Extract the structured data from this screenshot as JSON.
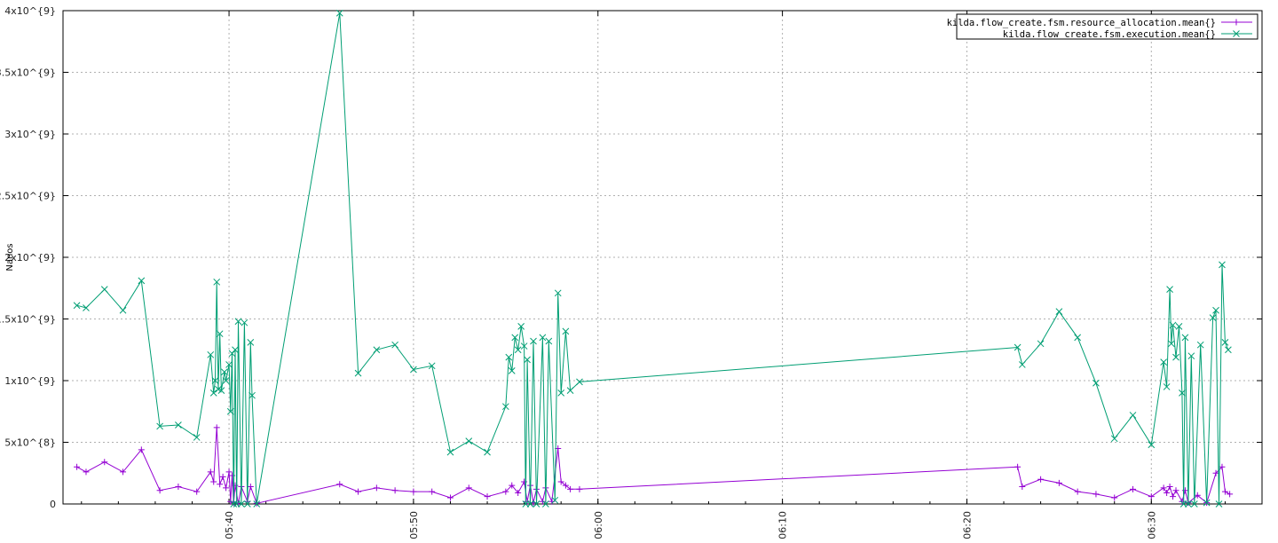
{
  "chart_data": {
    "type": "line",
    "title": "",
    "xlabel": "",
    "ylabel": "Nanos",
    "x_range": [
      "05:31",
      "06:36"
    ],
    "ylim": [
      0,
      4000000000
    ],
    "grid": true,
    "legend_position": "top-right",
    "x_ticks": [
      "05:40",
      "05:50",
      "06:00",
      "06:10",
      "06:20",
      "06:30"
    ],
    "y_ticks": [
      {
        "value": 0,
        "label": "0"
      },
      {
        "value": 500000000,
        "label": "5x10^{8}"
      },
      {
        "value": 1000000000,
        "label": "1x10^{9}"
      },
      {
        "value": 1500000000,
        "label": "1.5x10^{9}"
      },
      {
        "value": 2000000000,
        "label": "2x10^{9}"
      },
      {
        "value": 2500000000,
        "label": "2.5x10^{9}"
      },
      {
        "value": 3000000000,
        "label": "3x10^{9}"
      },
      {
        "value": 3500000000,
        "label": "3.5x10^{9}"
      },
      {
        "value": 4000000000,
        "label": "4x10^{9}"
      }
    ],
    "series": [
      {
        "name": "kilda.flow_create.fsm.resource_allocation.mean{}",
        "color": "#9400d3",
        "marker": "plus",
        "points": [
          [
            "05:31:45",
            300000000
          ],
          [
            "05:32:15",
            260000000
          ],
          [
            "05:33:15",
            340000000
          ],
          [
            "05:34:15",
            260000000
          ],
          [
            "05:35:15",
            440000000
          ],
          [
            "05:36:15",
            110000000
          ],
          [
            "05:37:15",
            140000000
          ],
          [
            "05:38:15",
            100000000
          ],
          [
            "05:39:00",
            260000000
          ],
          [
            "05:39:10",
            180000000
          ],
          [
            "05:39:20",
            620000000
          ],
          [
            "05:39:30",
            160000000
          ],
          [
            "05:39:40",
            220000000
          ],
          [
            "05:39:50",
            130000000
          ],
          [
            "05:40:00",
            260000000
          ],
          [
            "05:40:05",
            20000000
          ],
          [
            "05:40:10",
            230000000
          ],
          [
            "05:40:15",
            10000000
          ],
          [
            "05:40:20",
            150000000
          ],
          [
            "05:40:30",
            5000000
          ],
          [
            "05:40:40",
            140000000
          ],
          [
            "05:41:00",
            20000000
          ],
          [
            "05:41:10",
            140000000
          ],
          [
            "05:41:30",
            5000000
          ],
          [
            "05:46:00",
            160000000
          ],
          [
            "05:47:00",
            100000000
          ],
          [
            "05:48:00",
            130000000
          ],
          [
            "05:49:00",
            110000000
          ],
          [
            "05:50:00",
            100000000
          ],
          [
            "05:51:00",
            100000000
          ],
          [
            "05:52:00",
            50000000
          ],
          [
            "05:53:00",
            130000000
          ],
          [
            "05:54:00",
            60000000
          ],
          [
            "05:55:00",
            100000000
          ],
          [
            "05:55:20",
            150000000
          ],
          [
            "05:55:40",
            90000000
          ],
          [
            "05:56:00",
            180000000
          ],
          [
            "05:56:10",
            20000000
          ],
          [
            "05:56:20",
            150000000
          ],
          [
            "05:56:30",
            10000000
          ],
          [
            "05:56:40",
            120000000
          ],
          [
            "05:57:00",
            20000000
          ],
          [
            "05:57:10",
            130000000
          ],
          [
            "05:57:30",
            20000000
          ],
          [
            "05:57:50",
            450000000
          ],
          [
            "05:58:00",
            180000000
          ],
          [
            "05:58:15",
            150000000
          ],
          [
            "05:58:30",
            120000000
          ],
          [
            "05:59:00",
            120000000
          ],
          [
            "06:22:45",
            300000000
          ],
          [
            "06:23:00",
            140000000
          ],
          [
            "06:24:00",
            200000000
          ],
          [
            "06:25:00",
            170000000
          ],
          [
            "06:26:00",
            100000000
          ],
          [
            "06:27:00",
            80000000
          ],
          [
            "06:28:00",
            50000000
          ],
          [
            "06:29:00",
            120000000
          ],
          [
            "06:30:00",
            60000000
          ],
          [
            "06:30:40",
            130000000
          ],
          [
            "06:30:50",
            90000000
          ],
          [
            "06:31:00",
            140000000
          ],
          [
            "06:31:10",
            60000000
          ],
          [
            "06:31:20",
            110000000
          ],
          [
            "06:31:40",
            20000000
          ],
          [
            "06:31:50",
            110000000
          ],
          [
            "06:32:00",
            10000000
          ],
          [
            "06:32:30",
            70000000
          ],
          [
            "06:33:00",
            10000000
          ],
          [
            "06:33:30",
            250000000
          ],
          [
            "06:33:50",
            300000000
          ],
          [
            "06:34:00",
            100000000
          ],
          [
            "06:34:15",
            80000000
          ]
        ]
      },
      {
        "name": "kilda.flow_create.fsm.execution.mean{}",
        "color": "#009e73",
        "marker": "cross",
        "points": [
          [
            "05:31:45",
            1610000000
          ],
          [
            "05:32:15",
            1590000000
          ],
          [
            "05:33:15",
            1740000000
          ],
          [
            "05:34:15",
            1570000000
          ],
          [
            "05:35:15",
            1810000000
          ],
          [
            "05:36:15",
            630000000
          ],
          [
            "05:37:15",
            640000000
          ],
          [
            "05:38:15",
            540000000
          ],
          [
            "05:39:00",
            1210000000
          ],
          [
            "05:39:10",
            900000000
          ],
          [
            "05:39:15",
            1000000000
          ],
          [
            "05:39:20",
            1800000000
          ],
          [
            "05:39:25",
            930000000
          ],
          [
            "05:39:30",
            1380000000
          ],
          [
            "05:39:35",
            920000000
          ],
          [
            "05:39:45",
            1070000000
          ],
          [
            "05:39:50",
            1000000000
          ],
          [
            "05:40:00",
            1130000000
          ],
          [
            "05:40:05",
            750000000
          ],
          [
            "05:40:10",
            1220000000
          ],
          [
            "05:40:15",
            0
          ],
          [
            "05:40:20",
            1250000000
          ],
          [
            "05:40:25",
            0
          ],
          [
            "05:40:30",
            1480000000
          ],
          [
            "05:40:40",
            0
          ],
          [
            "05:40:50",
            1470000000
          ],
          [
            "05:41:00",
            0
          ],
          [
            "05:41:10",
            1310000000
          ],
          [
            "05:41:15",
            880000000
          ],
          [
            "05:41:30",
            0
          ],
          [
            "05:46:00",
            3980000000
          ],
          [
            "05:47:00",
            1060000000
          ],
          [
            "05:48:00",
            1250000000
          ],
          [
            "05:49:00",
            1290000000
          ],
          [
            "05:50:00",
            1090000000
          ],
          [
            "05:51:00",
            1120000000
          ],
          [
            "05:52:00",
            420000000
          ],
          [
            "05:53:00",
            510000000
          ],
          [
            "05:54:00",
            420000000
          ],
          [
            "05:55:00",
            790000000
          ],
          [
            "05:55:10",
            1190000000
          ],
          [
            "05:55:20",
            1080000000
          ],
          [
            "05:55:30",
            1350000000
          ],
          [
            "05:55:40",
            1250000000
          ],
          [
            "05:55:50",
            1440000000
          ],
          [
            "05:56:00",
            1280000000
          ],
          [
            "05:56:05",
            0
          ],
          [
            "05:56:10",
            1170000000
          ],
          [
            "05:56:20",
            0
          ],
          [
            "05:56:30",
            1320000000
          ],
          [
            "05:56:40",
            0
          ],
          [
            "05:57:00",
            1350000000
          ],
          [
            "05:57:10",
            0
          ],
          [
            "05:57:20",
            1320000000
          ],
          [
            "05:57:40",
            30000000
          ],
          [
            "05:57:50",
            1710000000
          ],
          [
            "05:58:00",
            900000000
          ],
          [
            "05:58:15",
            1400000000
          ],
          [
            "05:58:30",
            920000000
          ],
          [
            "05:59:00",
            990000000
          ],
          [
            "06:22:45",
            1270000000
          ],
          [
            "06:23:00",
            1130000000
          ],
          [
            "06:24:00",
            1300000000
          ],
          [
            "06:25:00",
            1560000000
          ],
          [
            "06:26:00",
            1350000000
          ],
          [
            "06:27:00",
            980000000
          ],
          [
            "06:28:00",
            530000000
          ],
          [
            "06:29:00",
            720000000
          ],
          [
            "06:30:00",
            480000000
          ],
          [
            "06:30:40",
            1150000000
          ],
          [
            "06:30:50",
            950000000
          ],
          [
            "06:31:00",
            1740000000
          ],
          [
            "06:31:05",
            1300000000
          ],
          [
            "06:31:10",
            1450000000
          ],
          [
            "06:31:20",
            1190000000
          ],
          [
            "06:31:30",
            1440000000
          ],
          [
            "06:31:40",
            900000000
          ],
          [
            "06:31:45",
            0
          ],
          [
            "06:31:50",
            1350000000
          ],
          [
            "06:32:00",
            0
          ],
          [
            "06:32:10",
            1200000000
          ],
          [
            "06:32:20",
            0
          ],
          [
            "06:32:40",
            1290000000
          ],
          [
            "06:33:00",
            10000000
          ],
          [
            "06:33:20",
            1510000000
          ],
          [
            "06:33:30",
            1570000000
          ],
          [
            "06:33:40",
            0
          ],
          [
            "06:33:50",
            1940000000
          ],
          [
            "06:34:00",
            1310000000
          ],
          [
            "06:34:10",
            1250000000
          ]
        ]
      }
    ]
  }
}
